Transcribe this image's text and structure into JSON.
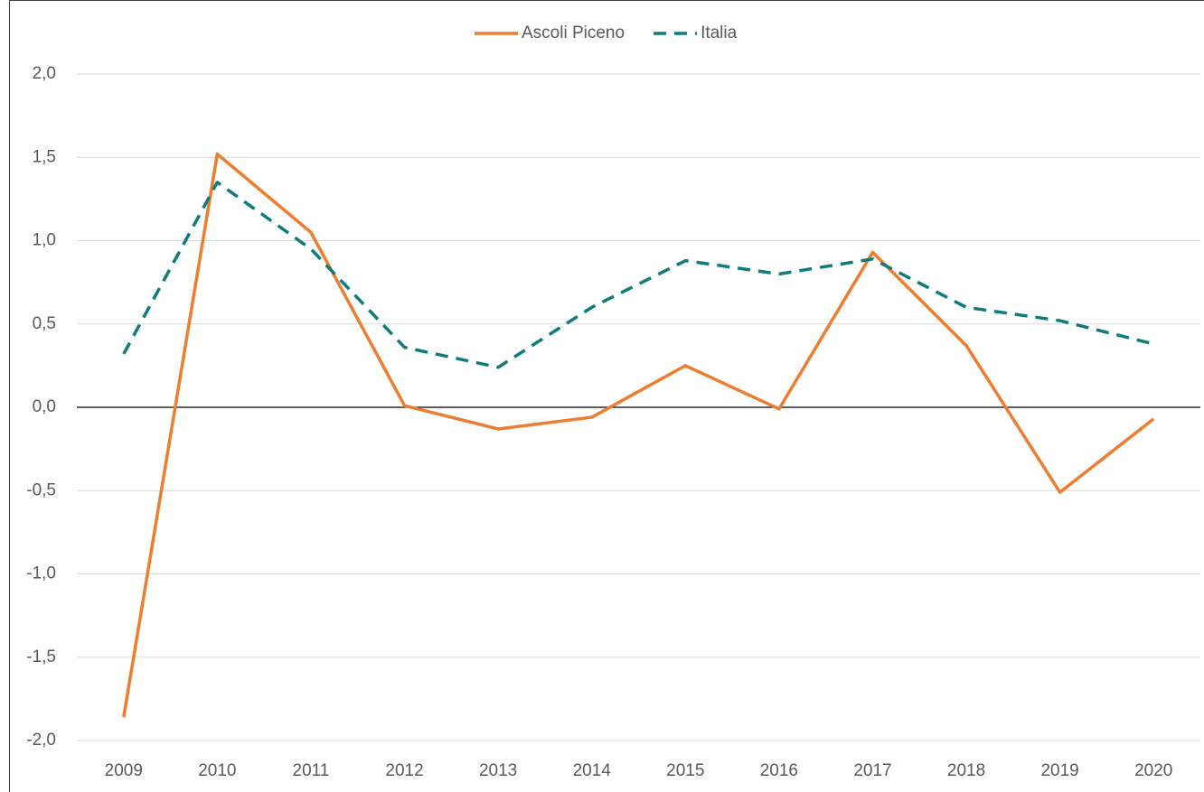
{
  "chart_data": {
    "type": "line",
    "categories": [
      "2009",
      "2010",
      "2011",
      "2012",
      "2013",
      "2014",
      "2015",
      "2016",
      "2017",
      "2018",
      "2019",
      "2020"
    ],
    "series": [
      {
        "name": "Ascoli Piceno",
        "color": "#ED7D31",
        "line_style": "solid",
        "values": [
          -1.86,
          1.52,
          1.05,
          0.01,
          -0.13,
          -0.06,
          0.25,
          -0.01,
          0.93,
          0.37,
          -0.51,
          -0.07
        ]
      },
      {
        "name": "Italia",
        "color": "#0E7C7B",
        "line_style": "dashed",
        "values": [
          0.32,
          1.35,
          0.95,
          0.36,
          0.24,
          0.6,
          0.88,
          0.8,
          0.89,
          0.6,
          0.52,
          0.38
        ]
      }
    ],
    "ylim": [
      -2,
      2
    ],
    "yticks": [
      {
        "value": -2,
        "label": "-2,0"
      },
      {
        "value": -1.5,
        "label": "-1,5"
      },
      {
        "value": -1,
        "label": "-1,0"
      },
      {
        "value": -0.5,
        "label": "-0,5"
      },
      {
        "value": 0,
        "label": "0,0"
      },
      {
        "value": 0.5,
        "label": "0,5"
      },
      {
        "value": 1,
        "label": "1,0"
      },
      {
        "value": 1.5,
        "label": "1,5"
      },
      {
        "value": 2,
        "label": "2,0"
      }
    ],
    "grid": true,
    "legend": "top"
  }
}
